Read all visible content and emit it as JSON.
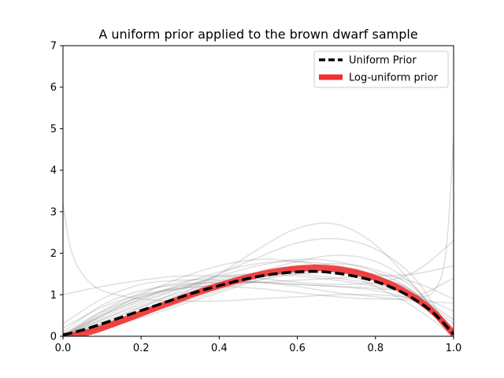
{
  "chart_data": {
    "type": "line",
    "title": "A uniform prior applied to the brown dwarf sample",
    "xlabel": "",
    "ylabel": "",
    "xlim": [
      0.0,
      1.0
    ],
    "ylim": [
      0,
      7
    ],
    "xticks": [
      0.0,
      0.2,
      0.4,
      0.6,
      0.8,
      1.0
    ],
    "xtick_labels": [
      "0.0",
      "0.2",
      "0.4",
      "0.6",
      "0.8",
      "1.0"
    ],
    "yticks": [
      0,
      1,
      2,
      3,
      4,
      5,
      6,
      7
    ],
    "ytick_labels": [
      "0",
      "1",
      "2",
      "3",
      "4",
      "5",
      "6",
      "7"
    ],
    "grid": false,
    "legend_position": "top-right",
    "series": [
      {
        "name": "Uniform Prior",
        "color": "#000000",
        "style": "dashed",
        "x": [
          0.0,
          0.05,
          0.1,
          0.15,
          0.2,
          0.25,
          0.3,
          0.35,
          0.4,
          0.45,
          0.5,
          0.55,
          0.6,
          0.65,
          0.7,
          0.75,
          0.8,
          0.85,
          0.9,
          0.95,
          1.0
        ],
        "y": [
          0.03,
          0.15,
          0.3,
          0.46,
          0.62,
          0.78,
          0.94,
          1.09,
          1.22,
          1.34,
          1.44,
          1.51,
          1.55,
          1.56,
          1.52,
          1.44,
          1.32,
          1.14,
          0.89,
          0.55,
          0.05
        ]
      },
      {
        "name": "Log-uniform prior",
        "color": "#f03030",
        "style": "solid",
        "x": [
          0.0,
          0.05,
          0.1,
          0.15,
          0.2,
          0.25,
          0.3,
          0.35,
          0.4,
          0.45,
          0.5,
          0.55,
          0.6,
          0.65,
          0.7,
          0.75,
          0.8,
          0.85,
          0.9,
          0.95,
          1.0
        ],
        "y": [
          0.0,
          0.06,
          0.2,
          0.37,
          0.55,
          0.73,
          0.9,
          1.07,
          1.22,
          1.36,
          1.48,
          1.57,
          1.63,
          1.65,
          1.62,
          1.54,
          1.4,
          1.2,
          0.93,
          0.57,
          0.05
        ]
      }
    ],
    "background_samples": [
      {
        "x": [
          0.0,
          0.02,
          0.05,
          0.1,
          0.2,
          0.3,
          0.4,
          0.5,
          0.6,
          0.7,
          0.8,
          0.9,
          0.95,
          0.98,
          1.0
        ],
        "y": [
          3.2,
          2.1,
          1.5,
          1.1,
          0.9,
          0.85,
          0.85,
          0.9,
          0.95,
          1.0,
          1.0,
          0.95,
          1.1,
          2.0,
          4.8
        ]
      },
      {
        "x": [
          0.0,
          0.1,
          0.2,
          0.3,
          0.4,
          0.5,
          0.6,
          0.7,
          0.8,
          0.9,
          1.0
        ],
        "y": [
          0.0,
          0.5,
          1.0,
          1.4,
          1.7,
          1.85,
          1.8,
          1.6,
          1.2,
          0.7,
          0.0
        ]
      },
      {
        "x": [
          0.0,
          0.1,
          0.2,
          0.3,
          0.4,
          0.5,
          0.6,
          0.7,
          0.8,
          0.9,
          1.0
        ],
        "y": [
          0.3,
          0.9,
          1.25,
          1.35,
          1.35,
          1.3,
          1.25,
          1.2,
          1.1,
          0.85,
          0.2
        ]
      },
      {
        "x": [
          0.0,
          0.1,
          0.2,
          0.3,
          0.4,
          0.5,
          0.6,
          0.7,
          0.8,
          0.9,
          1.0
        ],
        "y": [
          0.0,
          0.2,
          0.55,
          1.0,
          1.5,
          2.1,
          2.6,
          2.7,
          2.2,
          1.2,
          0.0
        ]
      },
      {
        "x": [
          0.0,
          0.1,
          0.2,
          0.3,
          0.4,
          0.5,
          0.6,
          0.7,
          0.8,
          0.9,
          1.0
        ],
        "y": [
          0.0,
          0.3,
          0.7,
          1.1,
          1.5,
          1.9,
          2.25,
          2.35,
          2.1,
          1.4,
          0.0
        ]
      },
      {
        "x": [
          0.0,
          0.1,
          0.2,
          0.3,
          0.4,
          0.5,
          0.6,
          0.7,
          0.8,
          0.9,
          1.0
        ],
        "y": [
          1.0,
          1.2,
          1.35,
          1.45,
          1.45,
          1.4,
          1.3,
          1.25,
          1.3,
          1.55,
          2.3
        ]
      },
      {
        "x": [
          0.0,
          0.1,
          0.2,
          0.3,
          0.4,
          0.5,
          0.6,
          0.7,
          0.8,
          0.9,
          1.0
        ],
        "y": [
          0.0,
          0.6,
          1.05,
          1.3,
          1.45,
          1.5,
          1.45,
          1.35,
          1.2,
          1.0,
          0.6
        ]
      },
      {
        "x": [
          0.0,
          0.1,
          0.2,
          0.3,
          0.4,
          0.5,
          0.6,
          0.7,
          0.8,
          0.9,
          1.0
        ],
        "y": [
          0.0,
          0.45,
          0.85,
          1.15,
          1.35,
          1.5,
          1.6,
          1.6,
          1.45,
          1.0,
          0.0
        ]
      },
      {
        "x": [
          0.0,
          0.1,
          0.2,
          0.3,
          0.4,
          0.5,
          0.6,
          0.7,
          0.8,
          0.9,
          1.0
        ],
        "y": [
          0.05,
          0.5,
          0.9,
          1.25,
          1.55,
          1.75,
          1.8,
          1.7,
          1.4,
          0.9,
          0.1
        ]
      },
      {
        "x": [
          0.0,
          0.1,
          0.2,
          0.3,
          0.4,
          0.5,
          0.6,
          0.7,
          0.8,
          0.9,
          1.0
        ],
        "y": [
          0.0,
          0.4,
          0.75,
          1.05,
          1.3,
          1.55,
          1.8,
          1.95,
          1.8,
          1.2,
          0.0
        ]
      },
      {
        "x": [
          0.0,
          0.1,
          0.2,
          0.3,
          0.4,
          0.5,
          0.6,
          0.7,
          0.8,
          0.9,
          1.0
        ],
        "y": [
          0.05,
          0.6,
          0.95,
          1.15,
          1.25,
          1.3,
          1.35,
          1.4,
          1.45,
          1.5,
          1.7
        ]
      },
      {
        "x": [
          0.0,
          0.1,
          0.2,
          0.3,
          0.4,
          0.5,
          0.6,
          0.7,
          0.8,
          0.9,
          1.0
        ],
        "y": [
          0.0,
          0.35,
          0.7,
          1.0,
          1.25,
          1.45,
          1.55,
          1.55,
          1.4,
          1.05,
          0.0
        ]
      },
      {
        "x": [
          0.0,
          0.1,
          0.2,
          0.3,
          0.4,
          0.5,
          0.6,
          0.7,
          0.8,
          0.9,
          1.0
        ],
        "y": [
          0.0,
          0.3,
          0.6,
          0.9,
          1.15,
          1.35,
          1.5,
          1.55,
          1.5,
          1.3,
          0.9
        ]
      },
      {
        "x": [
          0.0,
          0.1,
          0.2,
          0.3,
          0.4,
          0.5,
          0.6,
          0.7,
          0.8,
          0.9,
          1.0
        ],
        "y": [
          0.1,
          0.75,
          1.1,
          1.25,
          1.3,
          1.3,
          1.25,
          1.2,
          1.15,
          1.0,
          0.3
        ]
      },
      {
        "x": [
          0.0,
          0.1,
          0.2,
          0.3,
          0.4,
          0.5,
          0.6,
          0.7,
          0.8,
          0.9,
          1.0
        ],
        "y": [
          0.0,
          0.25,
          0.5,
          0.8,
          1.1,
          1.4,
          1.65,
          1.75,
          1.6,
          1.15,
          0.0
        ]
      },
      {
        "x": [
          0.0,
          0.1,
          0.2,
          0.3,
          0.4,
          0.5,
          0.6,
          0.7,
          0.8,
          0.9,
          1.0
        ],
        "y": [
          0.0,
          0.55,
          0.95,
          1.2,
          1.3,
          1.3,
          1.2,
          1.05,
          0.95,
          0.85,
          0.8
        ]
      },
      {
        "x": [
          0.0,
          0.1,
          0.2,
          0.3,
          0.4,
          0.5,
          0.6,
          0.7,
          0.8,
          0.9,
          1.0
        ],
        "y": [
          0.0,
          0.4,
          0.8,
          1.15,
          1.45,
          1.7,
          1.85,
          1.8,
          1.55,
          1.05,
          0.0
        ]
      },
      {
        "x": [
          0.0,
          0.1,
          0.2,
          0.3,
          0.4,
          0.5,
          0.6,
          0.7,
          0.8,
          0.9,
          1.0
        ],
        "y": [
          0.2,
          0.7,
          1.0,
          1.15,
          1.2,
          1.15,
          1.05,
          0.95,
          0.9,
          0.95,
          1.4
        ]
      },
      {
        "x": [
          0.0,
          0.1,
          0.2,
          0.3,
          0.4,
          0.5,
          0.6,
          0.7,
          0.8,
          0.9,
          1.0
        ],
        "y": [
          0.0,
          0.2,
          0.45,
          0.75,
          1.05,
          1.35,
          1.55,
          1.6,
          1.45,
          1.05,
          0.1
        ]
      },
      {
        "x": [
          0.0,
          0.1,
          0.2,
          0.3,
          0.4,
          0.5,
          0.6,
          0.7,
          0.8,
          0.9,
          1.0
        ],
        "y": [
          0.0,
          0.5,
          0.9,
          1.2,
          1.4,
          1.5,
          1.5,
          1.4,
          1.25,
          1.0,
          0.4
        ]
      }
    ]
  }
}
